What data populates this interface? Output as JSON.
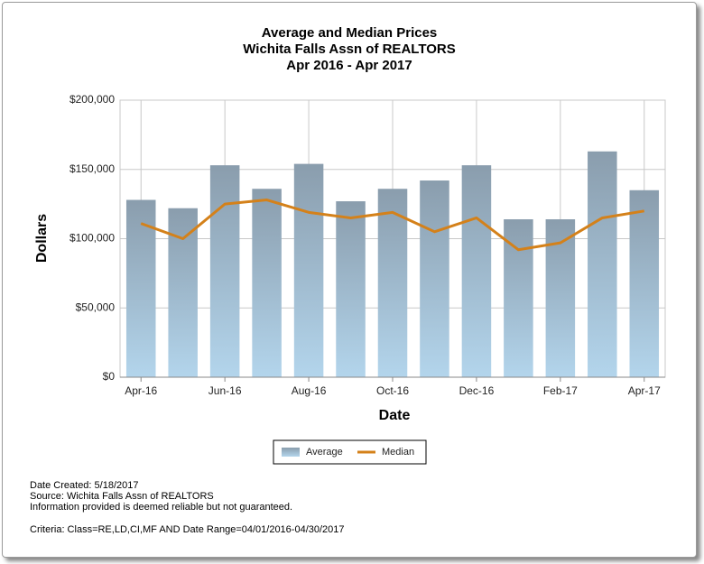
{
  "chart_data": {
    "type": "bar_line",
    "title": [
      "Average and Median Prices",
      "Wichita Falls Assn of REALTORS",
      "Apr 2016 - Apr 2017"
    ],
    "x_label": "Date",
    "y_label": "Dollars",
    "categories": [
      "Apr-16",
      null,
      "Jun-16",
      null,
      "Aug-16",
      null,
      "Oct-16",
      null,
      "Dec-16",
      null,
      "Feb-17",
      null,
      "Apr-17"
    ],
    "series": [
      {
        "name": "Average",
        "type": "bar",
        "color": "#8a9dad",
        "values": [
          128000,
          122000,
          153000,
          136000,
          154000,
          127000,
          136000,
          142000,
          153000,
          114000,
          114000,
          163000,
          135000
        ]
      },
      {
        "name": "Median",
        "type": "line",
        "color": "#d4811a",
        "values": [
          111000,
          100000,
          125000,
          128000,
          119000,
          115000,
          119000,
          105000,
          115000,
          92000,
          97000,
          115000,
          120000
        ]
      }
    ],
    "ylim": [
      0,
      200000
    ],
    "yticks": [
      {
        "value": 0,
        "label": "$0"
      },
      {
        "value": 50000,
        "label": "$50,000"
      },
      {
        "value": 100000,
        "label": "$100,000"
      },
      {
        "value": 150000,
        "label": "$150,000"
      },
      {
        "value": 200000,
        "label": "$200,000"
      }
    ],
    "grid": true,
    "legend": "bottom"
  },
  "footer": [
    "Date Created: 5/18/2017",
    "Source: Wichita Falls Assn of REALTORS",
    "Information provided is deemed reliable but not guaranteed.",
    "Criteria: Class=RE,LD,CI,MF AND Date Range=04/01/2016-04/30/2017"
  ]
}
